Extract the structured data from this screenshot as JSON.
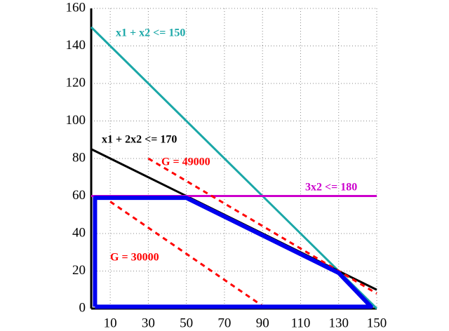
{
  "chart_data": {
    "type": "line",
    "xlim": [
      0,
      150
    ],
    "ylim": [
      0,
      160
    ],
    "xticks": [
      10,
      30,
      50,
      70,
      90,
      110,
      130,
      150
    ],
    "yticks": [
      0,
      20,
      40,
      60,
      80,
      100,
      120,
      140,
      160
    ],
    "grid": true,
    "series": [
      {
        "name": "x1 + x2 <= 150",
        "color": "#1aa7a7",
        "x": [
          0,
          150
        ],
        "values": [
          150,
          0
        ]
      },
      {
        "name": "x1 + 2x2 <= 170",
        "color": "#000000",
        "x": [
          0,
          150
        ],
        "values": [
          85,
          10
        ]
      },
      {
        "name": "3x2 <= 180",
        "color": "#cc00cc",
        "x": [
          0,
          150
        ],
        "values": [
          60,
          60
        ]
      },
      {
        "name": "G = 49000",
        "color": "#ff0000",
        "dashed": true,
        "x": [
          30,
          150
        ],
        "values": [
          80,
          8
        ]
      },
      {
        "name": "G = 30000",
        "color": "#ff0000",
        "dashed": true,
        "x": [
          10,
          92
        ],
        "values": [
          57,
          0
        ]
      },
      {
        "color": "#0000ee",
        "x": [
          2,
          2,
          50,
          130,
          147,
          2
        ],
        "values": [
          1,
          59,
          59,
          19,
          1,
          1
        ]
      }
    ]
  }
}
